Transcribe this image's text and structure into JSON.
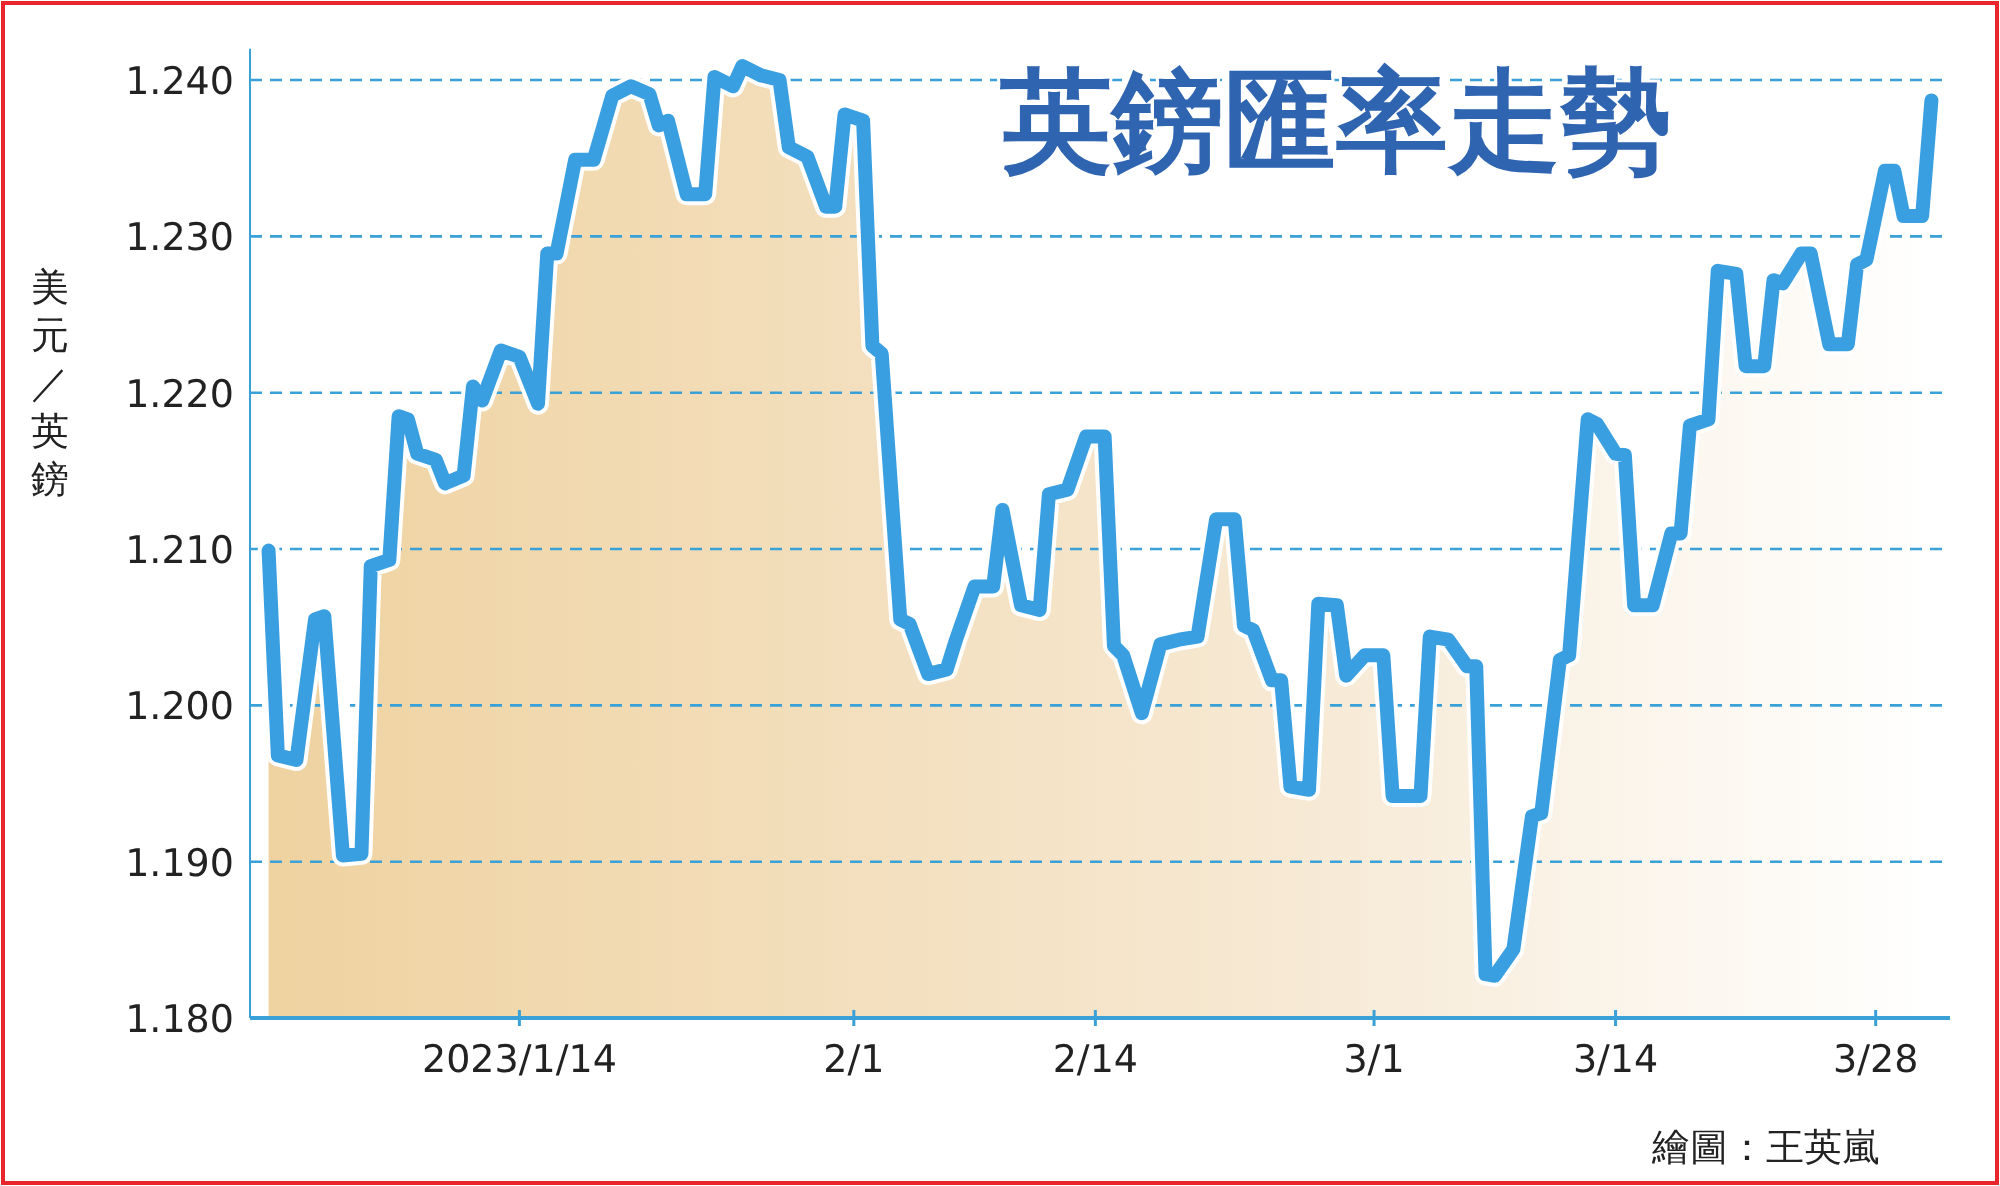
{
  "chart_data": {
    "type": "area",
    "title": "英鎊匯率走勢",
    "ylabel": "美元／英鎊",
    "annotations": [
      "繪圖：王英嵐"
    ],
    "xlim": [
      "2022-12-30T12:00",
      "2023-04-01"
    ],
    "ylim": [
      1.18,
      1.242
    ],
    "xticks": [
      {
        "value": "2023-01-14",
        "label": "2023/1/14"
      },
      {
        "value": "2023-02-01",
        "label": "2/1"
      },
      {
        "value": "2023-02-14",
        "label": "2/14"
      },
      {
        "value": "2023-03-01",
        "label": "3/1"
      },
      {
        "value": "2023-03-14",
        "label": "3/14"
      },
      {
        "value": "2023-03-28",
        "label": "3/28"
      }
    ],
    "yticks": [
      {
        "value": 1.18,
        "label": "1.180"
      },
      {
        "value": 1.19,
        "label": "1.190"
      },
      {
        "value": 1.2,
        "label": "1.200"
      },
      {
        "value": 1.21,
        "label": "1.210"
      },
      {
        "value": 1.22,
        "label": "1.220"
      },
      {
        "value": 1.23,
        "label": "1.230"
      },
      {
        "value": 1.24,
        "label": "1.240"
      }
    ],
    "grid": "y",
    "series": [
      {
        "color": "#3a9fe0",
        "x": [
          "2022-12-31T12:00",
          "2023-01-01",
          "2023-01-02",
          "2023-01-03",
          "2023-01-03T12:00",
          "2023-01-04T12:00",
          "2023-01-05T12:00",
          "2023-01-06",
          "2023-01-07",
          "2023-01-07T12:00",
          "2023-01-08",
          "2023-01-08T12:00",
          "2023-01-09T12:00",
          "2023-01-10",
          "2023-01-11",
          "2023-01-11T12:00",
          "2023-01-12",
          "2023-01-13",
          "2023-01-14",
          "2023-01-15",
          "2023-01-15T12:00",
          "2023-01-16",
          "2023-01-17",
          "2023-01-18",
          "2023-01-19",
          "2023-01-20",
          "2023-01-21",
          "2023-01-21T12:00",
          "2023-01-22",
          "2023-01-23",
          "2023-01-24",
          "2023-01-24T12:00",
          "2023-01-25T12:00",
          "2023-01-26",
          "2023-01-27",
          "2023-01-28",
          "2023-01-28T12:00",
          "2023-01-29T12:00",
          "2023-01-30T12:00",
          "2023-01-31",
          "2023-01-31T12:00",
          "2023-02-01T12:00",
          "2023-02-02",
          "2023-02-02T12:00",
          "2023-02-03T12:00",
          "2023-02-04",
          "2023-02-05",
          "2023-02-06",
          "2023-02-06T12:00",
          "2023-02-07T12:00",
          "2023-02-08T12:00",
          "2023-02-09",
          "2023-02-10",
          "2023-02-11",
          "2023-02-11T12:00",
          "2023-02-12T12:00",
          "2023-02-13T12:00",
          "2023-02-14T12:00",
          "2023-02-15",
          "2023-02-15T12:00",
          "2023-02-16T12:00",
          "2023-02-17T12:00",
          "2023-02-18T12:00",
          "2023-02-19T12:00",
          "2023-02-20T12:00",
          "2023-02-21T12:00",
          "2023-02-22",
          "2023-02-22T12:00",
          "2023-02-23T12:00",
          "2023-02-24",
          "2023-02-24T12:00",
          "2023-02-25T12:00",
          "2023-02-26",
          "2023-02-27",
          "2023-02-27T12:00",
          "2023-02-28T12:00",
          "2023-03-01T12:00",
          "2023-03-02",
          "2023-03-03T12:00",
          "2023-03-04",
          "2023-03-05",
          "2023-03-06",
          "2023-03-06T12:00",
          "2023-03-07",
          "2023-03-07T12:00",
          "2023-03-08T12:00",
          "2023-03-09T12:00",
          "2023-03-10",
          "2023-03-11",
          "2023-03-11T12:00",
          "2023-03-12T12:00",
          "2023-03-13",
          "2023-03-14",
          "2023-03-14T12:00",
          "2023-03-15",
          "2023-03-16",
          "2023-03-17",
          "2023-03-17T12:00",
          "2023-03-18",
          "2023-03-19",
          "2023-03-19T12:00",
          "2023-03-20T12:00",
          "2023-03-21",
          "2023-03-22",
          "2023-03-22T12:00",
          "2023-03-23",
          "2023-03-24",
          "2023-03-24T12:00",
          "2023-03-25T12:00",
          "2023-03-26T12:00",
          "2023-03-27",
          "2023-03-27T12:00",
          "2023-03-28T12:00",
          "2023-03-29",
          "2023-03-29T12:00",
          "2023-03-30T12:00",
          "2023-03-31"
        ],
        "values": [
          1.2099,
          1.1968,
          1.1965,
          1.2055,
          1.2057,
          1.1904,
          1.1905,
          1.2089,
          1.2093,
          1.2185,
          1.2183,
          1.2161,
          1.2157,
          1.2142,
          1.2147,
          1.2204,
          1.2195,
          1.2227,
          1.2223,
          1.2193,
          1.2289,
          1.2289,
          1.2349,
          1.2349,
          1.239,
          1.2396,
          1.2391,
          1.2371,
          1.2374,
          1.2327,
          1.2327,
          1.2402,
          1.2396,
          1.2409,
          1.2403,
          1.24,
          1.2357,
          1.2351,
          1.2319,
          1.2319,
          1.2378,
          1.2374,
          1.223,
          1.2225,
          1.2055,
          1.2052,
          1.202,
          1.2023,
          1.2042,
          1.2076,
          1.2076,
          1.2125,
          1.2064,
          1.2061,
          1.2135,
          1.2138,
          1.2172,
          1.2172,
          1.2038,
          1.2032,
          1.1995,
          1.2039,
          1.2042,
          1.2044,
          1.2119,
          1.2119,
          1.2051,
          1.2048,
          1.2016,
          1.2016,
          1.1948,
          1.1946,
          1.2065,
          1.2064,
          1.2019,
          1.2032,
          1.2032,
          1.1942,
          1.1942,
          1.2044,
          1.2042,
          1.2025,
          1.2025,
          1.1828,
          1.1827,
          1.1844,
          1.1929,
          1.1931,
          1.2029,
          1.2032,
          1.2183,
          1.218,
          1.2161,
          1.216,
          1.2064,
          1.2064,
          1.211,
          1.211,
          1.2179,
          1.2183,
          1.2278,
          1.2276,
          1.2217,
          1.2217,
          1.2272,
          1.227,
          1.2289,
          1.2289,
          1.2231,
          1.2231,
          1.2282,
          1.2285,
          1.2342,
          1.2342,
          1.2313,
          1.2313,
          1.2387
        ]
      }
    ]
  }
}
